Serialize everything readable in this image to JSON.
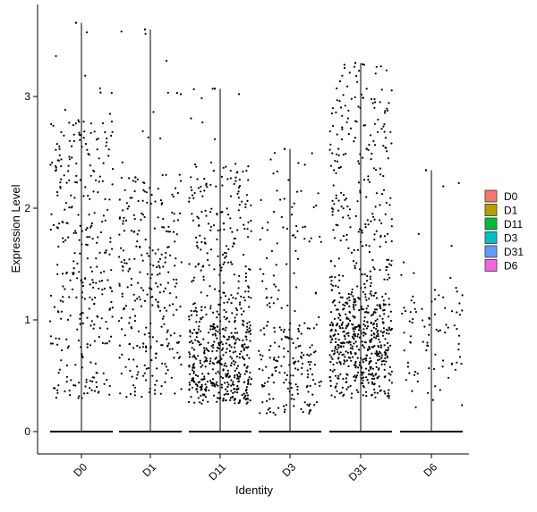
{
  "chart_data": {
    "type": "violin-jitter",
    "xlabel": "Identity",
    "ylabel": "Expression Level",
    "categories": [
      "D0",
      "D1",
      "D11",
      "D3",
      "D31",
      "D6"
    ],
    "ylim": [
      -0.2,
      3.8
    ],
    "yticks": [
      0,
      1,
      2,
      3
    ],
    "legend_placement": "right",
    "legend": [
      {
        "name": "D0",
        "color": "#F8766D"
      },
      {
        "name": "D1",
        "color": "#B79F00"
      },
      {
        "name": "D11",
        "color": "#00BA38"
      },
      {
        "name": "D3",
        "color": "#00BFC4"
      },
      {
        "name": "D31",
        "color": "#619CFF"
      },
      {
        "name": "D6",
        "color": "#F564E3"
      }
    ],
    "groups": [
      {
        "name": "D0",
        "max": 3.66,
        "n_points": 330,
        "dense_range": [
          0.3,
          2.8
        ],
        "median_nonzero": 1.6
      },
      {
        "name": "D1",
        "max": 3.6,
        "n_points": 300,
        "dense_range": [
          0.3,
          2.3
        ],
        "median_nonzero": 1.2
      },
      {
        "name": "D11",
        "max": 3.07,
        "n_points": 620,
        "dense_range": [
          0.25,
          2.4
        ],
        "median_nonzero": 0.6
      },
      {
        "name": "D3",
        "max": 2.53,
        "n_points": 230,
        "dense_range": [
          0.15,
          2.2
        ],
        "median_nonzero": 0.6
      },
      {
        "name": "D31",
        "max": 3.3,
        "n_points": 750,
        "dense_range": [
          0.3,
          3.0
        ],
        "median_nonzero": 0.8
      },
      {
        "name": "D6",
        "max": 2.34,
        "n_points": 90,
        "dense_range": [
          0.2,
          1.8
        ],
        "median_nonzero": 0.9
      }
    ]
  }
}
